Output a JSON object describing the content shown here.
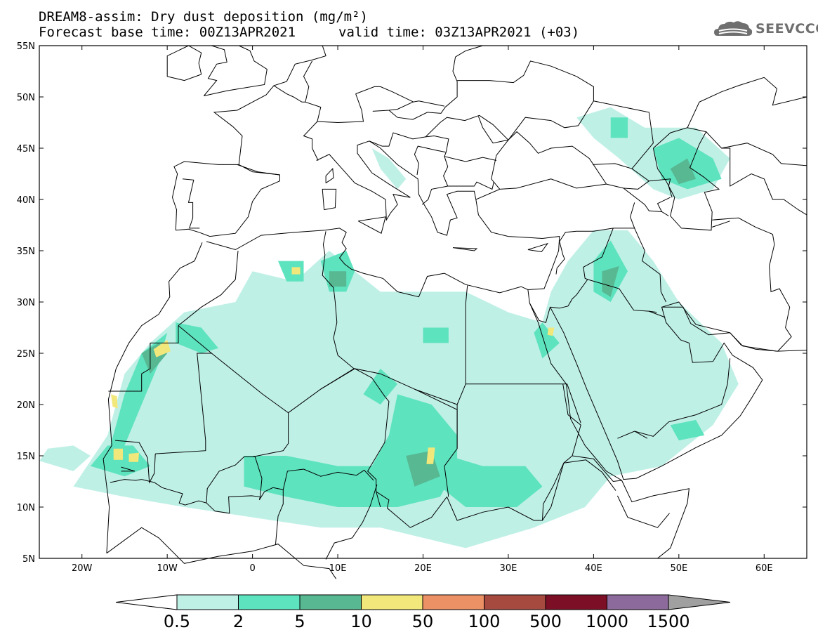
{
  "header": {
    "title": "DREAM8-assim: Dry dust deposition (mg/m²)",
    "base_time": "Forecast base time: 00Z13APR2021",
    "valid_time": "valid time: 03Z13APR2021 (+03)"
  },
  "logo": {
    "text": "SEEVCCC",
    "icon": "cloud-icon",
    "color": "#6f6f6f"
  },
  "map": {
    "projection": "lat-lon",
    "lon_range": [
      -25,
      65
    ],
    "lat_range": [
      5,
      55
    ],
    "lon_ticks": [
      {
        "value": -20,
        "label": "20W"
      },
      {
        "value": -10,
        "label": "10W"
      },
      {
        "value": 0,
        "label": "0"
      },
      {
        "value": 10,
        "label": "10E"
      },
      {
        "value": 20,
        "label": "20E"
      },
      {
        "value": 30,
        "label": "30E"
      },
      {
        "value": 40,
        "label": "40E"
      },
      {
        "value": 50,
        "label": "50E"
      },
      {
        "value": 60,
        "label": "60E"
      }
    ],
    "lat_ticks": [
      {
        "value": 5,
        "label": "5N"
      },
      {
        "value": 10,
        "label": "10N"
      },
      {
        "value": 15,
        "label": "15N"
      },
      {
        "value": 20,
        "label": "20N"
      },
      {
        "value": 25,
        "label": "25N"
      },
      {
        "value": 30,
        "label": "30N"
      },
      {
        "value": 35,
        "label": "35N"
      },
      {
        "value": 40,
        "label": "40N"
      },
      {
        "value": 45,
        "label": "45N"
      },
      {
        "value": 50,
        "label": "50N"
      },
      {
        "value": 55,
        "label": "55N"
      }
    ]
  },
  "colorbar": {
    "labels": [
      "0.5",
      "2",
      "5",
      "10",
      "50",
      "100",
      "500",
      "1000",
      "1500"
    ],
    "low_color": "#ffffff",
    "high_color": "#a0a0a0",
    "colors": [
      "#bff0e6",
      "#5ee3bf",
      "#57b892",
      "#f2e77b",
      "#ec9065",
      "#a64a3f",
      "#7c0f26",
      "#8c6b9c"
    ]
  },
  "chart_data": {
    "type": "heatmap",
    "variable": "Dry dust deposition (mg/m²)",
    "levels": [
      0.5,
      2,
      5,
      10,
      50,
      100,
      500,
      1000,
      1500
    ],
    "xlim": [
      -25,
      65
    ],
    "ylim": [
      5,
      55
    ],
    "regions": [
      {
        "level": 0,
        "poly": [
          [
            -21,
            12
          ],
          [
            -17,
            17
          ],
          [
            -15,
            23
          ],
          [
            -12,
            26
          ],
          [
            -8,
            29
          ],
          [
            -2,
            30
          ],
          [
            0,
            33
          ],
          [
            5,
            32
          ],
          [
            9,
            35
          ],
          [
            12,
            33
          ],
          [
            15,
            31
          ],
          [
            20,
            31
          ],
          [
            25,
            31
          ],
          [
            30,
            29
          ],
          [
            34,
            28
          ],
          [
            35,
            31
          ],
          [
            37,
            34
          ],
          [
            40,
            37
          ],
          [
            44,
            37
          ],
          [
            47,
            34
          ],
          [
            50,
            30
          ],
          [
            55,
            26
          ],
          [
            57,
            22
          ],
          [
            54,
            18
          ],
          [
            48,
            14
          ],
          [
            42,
            13
          ],
          [
            39,
            10
          ],
          [
            33,
            8
          ],
          [
            25,
            6
          ],
          [
            15,
            8
          ],
          [
            8,
            8
          ],
          [
            0,
            9
          ],
          [
            -8,
            10
          ],
          [
            -15,
            11
          ]
        ]
      },
      {
        "level": 0,
        "poly": [
          [
            38,
            48
          ],
          [
            42,
            49
          ],
          [
            46,
            47
          ],
          [
            52,
            47
          ],
          [
            56,
            44
          ],
          [
            54,
            41
          ],
          [
            50,
            40
          ],
          [
            47,
            41
          ],
          [
            43,
            44
          ],
          [
            40,
            46
          ]
        ]
      },
      {
        "level": 0,
        "poly": [
          [
            -25,
            14.5
          ],
          [
            -21,
            13.5
          ],
          [
            -19,
            15
          ],
          [
            -21,
            16
          ],
          [
            -24,
            15.7
          ]
        ]
      },
      {
        "level": 0,
        "poly": [
          [
            14,
            45
          ],
          [
            16,
            44
          ],
          [
            18,
            42
          ],
          [
            17,
            41
          ],
          [
            15,
            43
          ]
        ]
      },
      {
        "level": 1,
        "poly": [
          [
            -17,
            15
          ],
          [
            -15,
            21
          ],
          [
            -13,
            25
          ],
          [
            -10,
            27
          ],
          [
            -11,
            24
          ],
          [
            -13,
            20
          ],
          [
            -15,
            16
          ]
        ]
      },
      {
        "level": 1,
        "poly": [
          [
            -19,
            14
          ],
          [
            -17,
            16
          ],
          [
            -14,
            16
          ],
          [
            -12,
            14
          ],
          [
            -15,
            13
          ]
        ]
      },
      {
        "level": 1,
        "poly": [
          [
            -9,
            28
          ],
          [
            -6,
            27.5
          ],
          [
            -4,
            25.5
          ],
          [
            -6,
            25
          ],
          [
            -9,
            26
          ]
        ]
      },
      {
        "level": 1,
        "poly": [
          [
            3,
            34
          ],
          [
            6,
            34
          ],
          [
            6,
            32
          ],
          [
            4,
            32
          ]
        ]
      },
      {
        "level": 1,
        "poly": [
          [
            8,
            34
          ],
          [
            11,
            35
          ],
          [
            12,
            33
          ],
          [
            11,
            31
          ],
          [
            9,
            31
          ]
        ]
      },
      {
        "level": 1,
        "poly": [
          [
            -1,
            15
          ],
          [
            4,
            15
          ],
          [
            10,
            14
          ],
          [
            14,
            14
          ],
          [
            16,
            17
          ],
          [
            17,
            21
          ],
          [
            21,
            20
          ],
          [
            24,
            17
          ],
          [
            24,
            14
          ],
          [
            22,
            11
          ],
          [
            17,
            10
          ],
          [
            10,
            10
          ],
          [
            4,
            11
          ],
          [
            -1,
            12
          ]
        ]
      },
      {
        "level": 1,
        "poly": [
          [
            23,
            15
          ],
          [
            27,
            14
          ],
          [
            32,
            14
          ],
          [
            34,
            12
          ],
          [
            31,
            10
          ],
          [
            25,
            10
          ],
          [
            22,
            12
          ]
        ]
      },
      {
        "level": 1,
        "poly": [
          [
            13,
            21
          ],
          [
            15,
            23.5
          ],
          [
            17,
            22
          ],
          [
            15,
            20
          ]
        ]
      },
      {
        "level": 1,
        "poly": [
          [
            40,
            34
          ],
          [
            42,
            36
          ],
          [
            44,
            33
          ],
          [
            42,
            30
          ],
          [
            40,
            31
          ]
        ]
      },
      {
        "level": 1,
        "poly": [
          [
            33,
            27
          ],
          [
            34,
            28
          ],
          [
            36,
            26
          ],
          [
            34,
            24.5
          ]
        ]
      },
      {
        "level": 1,
        "poly": [
          [
            42,
            48
          ],
          [
            44,
            48
          ],
          [
            44,
            46
          ],
          [
            42,
            46
          ]
        ]
      },
      {
        "level": 1,
        "poly": [
          [
            47,
            45
          ],
          [
            50,
            46
          ],
          [
            54,
            44
          ],
          [
            55,
            42
          ],
          [
            51,
            41
          ],
          [
            48,
            42
          ]
        ]
      },
      {
        "level": 1,
        "poly": [
          [
            49,
            18
          ],
          [
            52,
            18.5
          ],
          [
            53,
            17
          ],
          [
            50,
            16.5
          ]
        ]
      },
      {
        "level": 1,
        "poly": [
          [
            20,
            27.5
          ],
          [
            23,
            27.5
          ],
          [
            23,
            26
          ],
          [
            20,
            26
          ]
        ]
      },
      {
        "level": 2,
        "poly": [
          [
            -13,
            25
          ],
          [
            -11,
            26
          ],
          [
            -10,
            25
          ],
          [
            -12,
            23
          ]
        ]
      },
      {
        "level": 2,
        "poly": [
          [
            9,
            33
          ],
          [
            11,
            33
          ],
          [
            11,
            31.5
          ],
          [
            9,
            31.5
          ]
        ]
      },
      {
        "level": 2,
        "poly": [
          [
            18,
            15
          ],
          [
            21,
            15.5
          ],
          [
            22,
            13
          ],
          [
            19,
            12
          ]
        ]
      },
      {
        "level": 2,
        "poly": [
          [
            41,
            33
          ],
          [
            43,
            33.5
          ],
          [
            42,
            30.5
          ],
          [
            41,
            31
          ]
        ]
      },
      {
        "level": 2,
        "poly": [
          [
            49,
            43
          ],
          [
            51,
            44
          ],
          [
            52,
            42
          ],
          [
            50,
            41.5
          ]
        ]
      },
      {
        "level": 3,
        "poly": [
          [
            -11.6,
            25.4
          ],
          [
            -10,
            26.3
          ],
          [
            -9.6,
            25.2
          ],
          [
            -11.3,
            24.6
          ]
        ]
      },
      {
        "level": 3,
        "poly": [
          [
            4.6,
            33.4
          ],
          [
            5.6,
            33.4
          ],
          [
            5.6,
            32.7
          ],
          [
            4.6,
            32.7
          ]
        ]
      },
      {
        "level": 3,
        "poly": [
          [
            -16.6,
            21
          ],
          [
            -15.9,
            20.8
          ],
          [
            -15.8,
            19.6
          ],
          [
            -16.4,
            19.8
          ]
        ]
      },
      {
        "level": 3,
        "poly": [
          [
            -16.3,
            15.7
          ],
          [
            -15.2,
            15.7
          ],
          [
            -15.2,
            14.6
          ],
          [
            -16.3,
            14.6
          ]
        ]
      },
      {
        "level": 3,
        "poly": [
          [
            -14.5,
            15.2
          ],
          [
            -13.3,
            15.3
          ],
          [
            -13.4,
            14.4
          ],
          [
            -14.5,
            14.4
          ]
        ]
      },
      {
        "level": 3,
        "poly": [
          [
            20.6,
            15.8
          ],
          [
            21.4,
            15.8
          ],
          [
            21.2,
            14.2
          ],
          [
            20.4,
            14.2
          ]
        ]
      },
      {
        "level": 3,
        "poly": [
          [
            34.7,
            27.5
          ],
          [
            35.4,
            27.5
          ],
          [
            35.2,
            26.7
          ],
          [
            34.6,
            26.8
          ]
        ]
      }
    ]
  }
}
